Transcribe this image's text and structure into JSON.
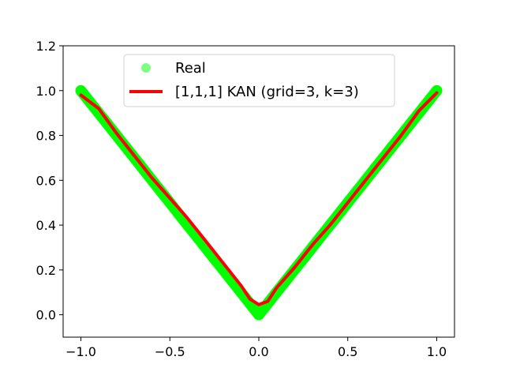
{
  "chart_data": {
    "type": "scatter",
    "title": "",
    "xlabel": "",
    "ylabel": "",
    "xlim": [
      -1.1,
      1.1
    ],
    "ylim": [
      -0.1,
      1.2
    ],
    "xticks": [
      -1.0,
      -0.5,
      0.0,
      0.5,
      1.0
    ],
    "yticks": [
      0.0,
      0.2,
      0.4,
      0.6,
      0.8,
      1.0,
      1.2
    ],
    "xtick_labels": [
      "−1.0",
      "−0.5",
      "0.0",
      "0.5",
      "1.0"
    ],
    "ytick_labels": [
      "0.0",
      "0.2",
      "0.4",
      "0.6",
      "0.8",
      "1.0",
      "1.2"
    ],
    "legend_position": "upper-center",
    "grid": false,
    "series": [
      {
        "name": "Real",
        "kind": "scatter",
        "color": "#00ff00",
        "x": [
          -1.0,
          -0.95,
          -0.9,
          -0.85,
          -0.8,
          -0.75,
          -0.7,
          -0.65,
          -0.6,
          -0.55,
          -0.5,
          -0.45,
          -0.4,
          -0.35,
          -0.3,
          -0.25,
          -0.2,
          -0.15,
          -0.1,
          -0.05,
          0.0,
          0.05,
          0.1,
          0.15,
          0.2,
          0.25,
          0.3,
          0.35,
          0.4,
          0.45,
          0.5,
          0.55,
          0.6,
          0.65,
          0.7,
          0.75,
          0.8,
          0.85,
          0.9,
          0.95,
          1.0
        ],
        "y": [
          1.0,
          0.95,
          0.9,
          0.85,
          0.8,
          0.75,
          0.7,
          0.65,
          0.6,
          0.55,
          0.5,
          0.45,
          0.4,
          0.35,
          0.3,
          0.25,
          0.2,
          0.15,
          0.1,
          0.05,
          0.0,
          0.05,
          0.1,
          0.15,
          0.2,
          0.25,
          0.3,
          0.35,
          0.4,
          0.45,
          0.5,
          0.55,
          0.6,
          0.65,
          0.7,
          0.75,
          0.8,
          0.85,
          0.9,
          0.95,
          1.0
        ]
      },
      {
        "name": "[1,1,1] KAN (grid=3, k=3)",
        "kind": "line",
        "color": "#ff0000",
        "x": [
          -1.0,
          -0.9,
          -0.8,
          -0.7,
          -0.6,
          -0.5,
          -0.4,
          -0.3,
          -0.2,
          -0.1,
          -0.05,
          0.0,
          0.05,
          0.1,
          0.2,
          0.3,
          0.4,
          0.5,
          0.6,
          0.7,
          0.8,
          0.9,
          1.0
        ],
        "y": [
          0.98,
          0.92,
          0.81,
          0.71,
          0.61,
          0.52,
          0.43,
          0.33,
          0.23,
          0.13,
          0.07,
          0.045,
          0.06,
          0.12,
          0.21,
          0.31,
          0.4,
          0.5,
          0.6,
          0.7,
          0.8,
          0.91,
          0.99
        ]
      }
    ]
  }
}
